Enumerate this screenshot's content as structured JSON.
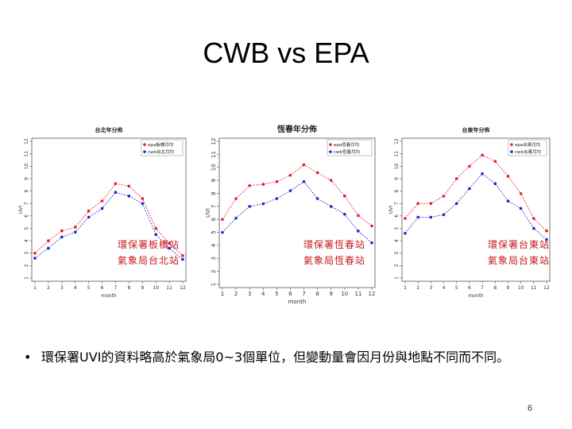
{
  "slide": {
    "title": "CWB vs EPA",
    "bullet": "環保署UVI的資料略高於氣象局0~3個單位，但變動量會因月份與地點不同而不同。",
    "page_number": "6"
  },
  "colors": {
    "epa": "#e8192c",
    "cwb": "#2323c8",
    "station_label": "#c41a1a"
  },
  "chart_data": [
    {
      "type": "line",
      "title": "台北年分佈",
      "xlabel": "month",
      "ylabel": "UVI",
      "x": [
        1,
        2,
        3,
        4,
        5,
        6,
        7,
        8,
        9,
        10,
        11,
        12
      ],
      "xlim": [
        1,
        12
      ],
      "ylim": [
        1,
        12
      ],
      "yticks": [
        1,
        2,
        3,
        4,
        5,
        6,
        7,
        8,
        9,
        10,
        11,
        12
      ],
      "legend_position": "top-right",
      "series": [
        {
          "name": "epa板橋月均",
          "values": [
            3.0,
            4.0,
            4.8,
            5.1,
            6.4,
            7.2,
            8.6,
            8.4,
            7.4,
            5.0,
            3.8,
            2.8
          ]
        },
        {
          "name": "cwb台北月均",
          "values": [
            2.6,
            3.4,
            4.3,
            4.7,
            5.9,
            6.6,
            7.9,
            7.6,
            7.0,
            4.5,
            3.4,
            2.5
          ]
        }
      ],
      "station_labels": [
        "環保署板橋站",
        "氣象局台北站"
      ]
    },
    {
      "type": "line",
      "title": "恆春年分佈",
      "xlabel": "month",
      "ylabel": "UVI",
      "x": [
        1,
        2,
        3,
        4,
        5,
        6,
        7,
        8,
        9,
        10,
        11,
        12
      ],
      "xlim": [
        1,
        12
      ],
      "ylim": [
        1,
        12
      ],
      "yticks": [
        1,
        2,
        3,
        4,
        5,
        6,
        7,
        8,
        9,
        10,
        11,
        12
      ],
      "legend_position": "top-right",
      "series": [
        {
          "name": "epa恆春月均",
          "values": [
            6.0,
            7.6,
            8.6,
            8.7,
            8.9,
            9.4,
            10.2,
            9.6,
            9.0,
            7.8,
            6.3,
            5.5
          ]
        },
        {
          "name": "cwb恆春月均",
          "values": [
            5.0,
            6.1,
            7.0,
            7.2,
            7.6,
            8.2,
            8.9,
            7.6,
            7.0,
            6.4,
            5.1,
            4.2
          ]
        }
      ],
      "station_labels": [
        "環保署恆春站",
        "氣象局恆春站"
      ]
    },
    {
      "type": "line",
      "title": "台東年分佈",
      "xlabel": "month",
      "ylabel": "UVI",
      "x": [
        1,
        2,
        3,
        4,
        5,
        6,
        7,
        8,
        9,
        10,
        11,
        12
      ],
      "xlim": [
        1,
        12
      ],
      "ylim": [
        1,
        12
      ],
      "yticks": [
        1,
        2,
        3,
        4,
        5,
        6,
        7,
        8,
        9,
        10,
        11,
        12
      ],
      "legend_position": "top-right",
      "series": [
        {
          "name": "epa台東月均",
          "values": [
            5.8,
            7.0,
            7.0,
            7.6,
            9.0,
            10.0,
            10.9,
            10.4,
            9.2,
            7.8,
            5.8,
            4.8
          ]
        },
        {
          "name": "cwb台東月均",
          "values": [
            4.6,
            5.9,
            5.9,
            6.1,
            7.0,
            8.2,
            9.4,
            8.6,
            7.2,
            6.6,
            5.0,
            4.1
          ]
        }
      ],
      "station_labels": [
        "環保署台東站",
        "氣象局台東站"
      ]
    }
  ]
}
